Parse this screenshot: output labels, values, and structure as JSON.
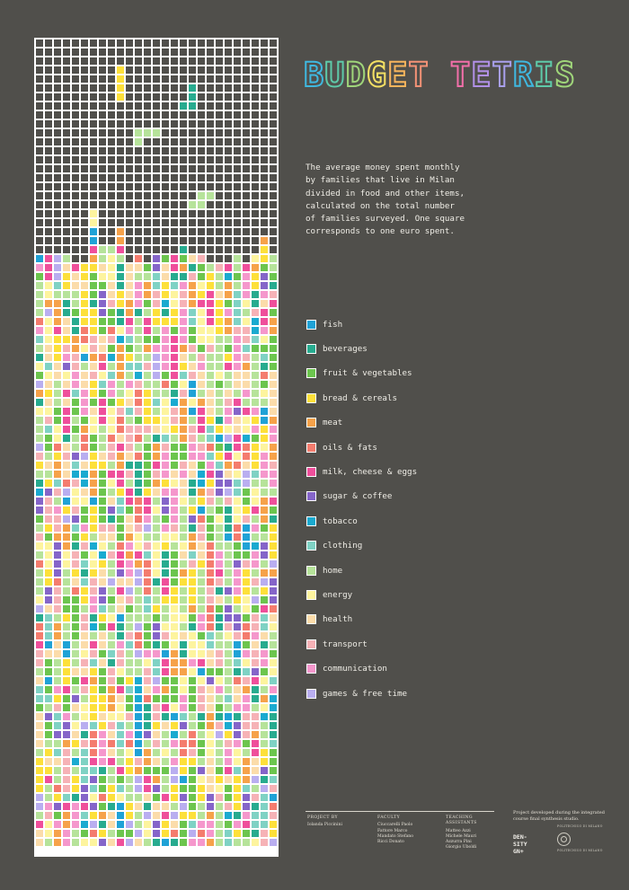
{
  "title": "BUDGET TETRIS",
  "description": "The average money spent monthly by families that live in Milan divided in food and other items, calculated on the total number of families surveyed. One square corresponds to one euro spent.",
  "legend": [
    {
      "label": "fish",
      "color": "#1fa2d6"
    },
    {
      "label": "beverages",
      "color": "#27ab8f"
    },
    {
      "label": "fruit & vegetables",
      "color": "#6cc54e"
    },
    {
      "label": "bread & cereals",
      "color": "#fde03a"
    },
    {
      "label": "meat",
      "color": "#f6a24a"
    },
    {
      "label": "oils & fats",
      "color": "#f47c6e"
    },
    {
      "label": "milk, cheese & eggs",
      "color": "#ef4f9b"
    },
    {
      "label": "sugar & coffee",
      "color": "#8565c9"
    },
    {
      "label": "tobacco",
      "color": "#1aaad0"
    },
    {
      "label": "clothing",
      "color": "#7fd2c4"
    },
    {
      "label": "home",
      "color": "#b6e39a"
    },
    {
      "label": "energy",
      "color": "#fdf49e"
    },
    {
      "label": "health",
      "color": "#fbdcaa"
    },
    {
      "label": "transport",
      "color": "#f6b2b6"
    },
    {
      "label": "communication",
      "color": "#f597cc"
    },
    {
      "label": "games & free time",
      "color": "#b9aef0"
    }
  ],
  "credits": {
    "project_by": {
      "heading": "PROJECT BY",
      "names": [
        "Iolanda Piccinini"
      ]
    },
    "faculty": {
      "heading": "FACULTY",
      "names": [
        "Ciuccarelli Paolo",
        "Fattore Marco",
        "Mandato Stefano",
        "Ricci Donato"
      ]
    },
    "assistants": {
      "heading": "TEACHING ASSISTANTS",
      "names": [
        "Matteo Azzi",
        "Michele Mauri",
        "Azzurra Pini",
        "Giorgio Uboldi"
      ]
    }
  },
  "studio_note": "Project developed during the integrated course final synthesis studio.",
  "lab_logo": [
    "DEN-",
    "SITY",
    "GN+"
  ],
  "university": [
    "POLITECNICO DI MILANO",
    "POLITECNICO DI MILANO"
  ]
}
